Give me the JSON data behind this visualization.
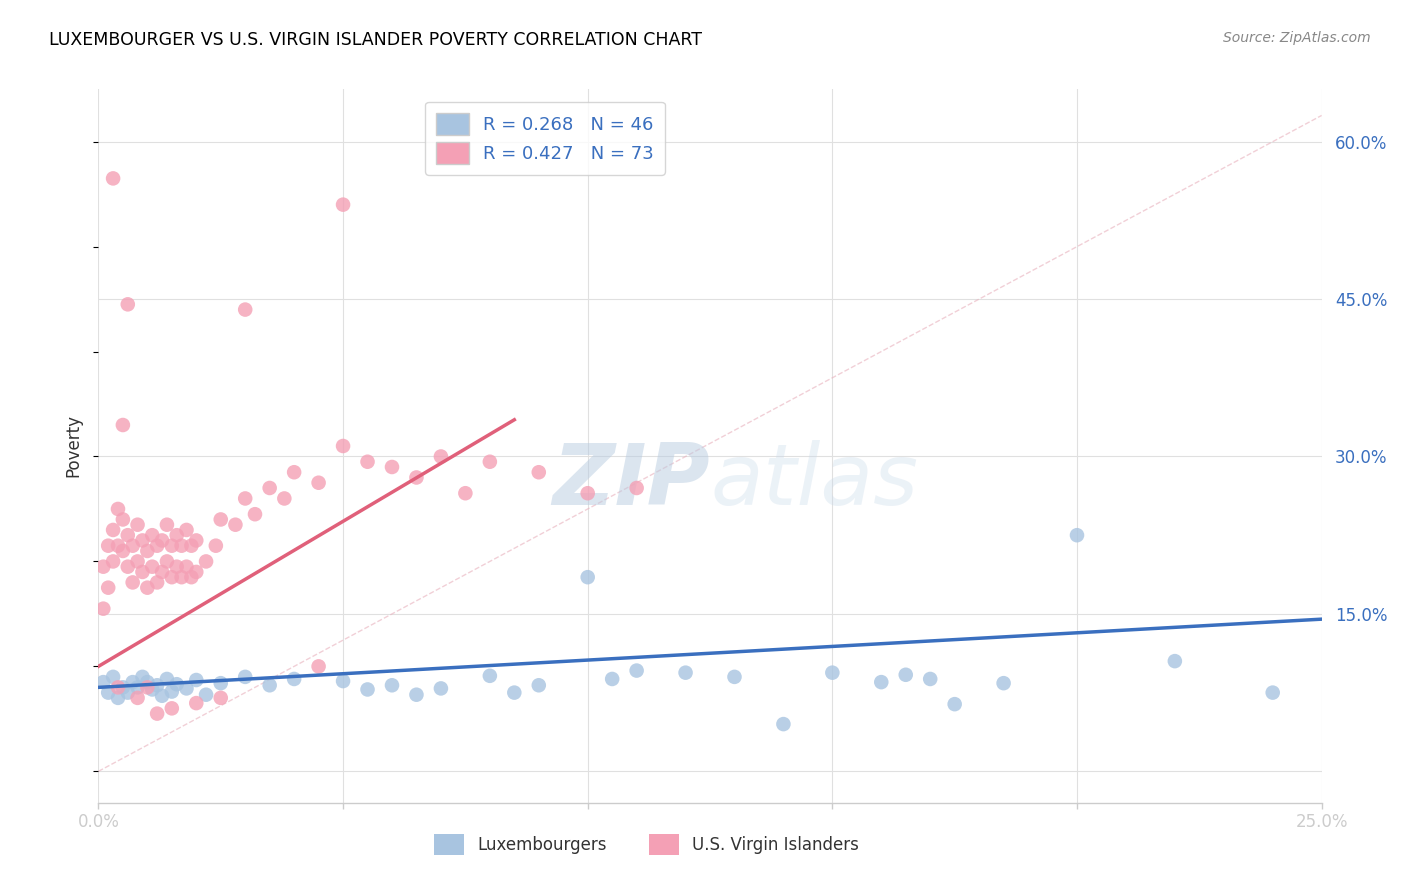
{
  "title": "LUXEMBOURGER VS U.S. VIRGIN ISLANDER POVERTY CORRELATION CHART",
  "source": "Source: ZipAtlas.com",
  "ylabel": "Poverty",
  "watermark_zip": "ZIP",
  "watermark_atlas": "atlas",
  "xlim": [
    0.0,
    0.25
  ],
  "ylim": [
    -0.03,
    0.65
  ],
  "xticks": [
    0.0,
    0.05,
    0.1,
    0.15,
    0.2,
    0.25
  ],
  "yticks_right": [
    0.0,
    0.15,
    0.3,
    0.45,
    0.6
  ],
  "ytick_labels_right": [
    "",
    "15.0%",
    "30.0%",
    "45.0%",
    "60.0%"
  ],
  "xtick_labels": [
    "0.0%",
    "",
    "",
    "",
    "",
    "25.0%"
  ],
  "blue_R": 0.268,
  "blue_N": 46,
  "pink_R": 0.427,
  "pink_N": 73,
  "blue_color": "#a8c4e0",
  "pink_color": "#f4a0b5",
  "blue_line_color": "#3a6fbf",
  "pink_line_color": "#e0607a",
  "dashed_line_color": "#e8b0bc",
  "grid_color": "#e0e0e0",
  "blue_scatter_x": [
    0.001,
    0.002,
    0.003,
    0.004,
    0.005,
    0.006,
    0.007,
    0.008,
    0.009,
    0.01,
    0.011,
    0.012,
    0.013,
    0.014,
    0.015,
    0.016,
    0.018,
    0.02,
    0.022,
    0.025,
    0.03,
    0.035,
    0.04,
    0.05,
    0.055,
    0.06,
    0.065,
    0.07,
    0.08,
    0.085,
    0.09,
    0.1,
    0.105,
    0.11,
    0.12,
    0.13,
    0.14,
    0.15,
    0.16,
    0.165,
    0.17,
    0.175,
    0.185,
    0.2,
    0.22,
    0.24
  ],
  "blue_scatter_y": [
    0.085,
    0.075,
    0.09,
    0.07,
    0.08,
    0.075,
    0.085,
    0.08,
    0.09,
    0.085,
    0.078,
    0.082,
    0.072,
    0.088,
    0.076,
    0.083,
    0.079,
    0.087,
    0.073,
    0.084,
    0.09,
    0.082,
    0.088,
    0.086,
    0.078,
    0.082,
    0.073,
    0.079,
    0.091,
    0.075,
    0.082,
    0.185,
    0.088,
    0.096,
    0.094,
    0.09,
    0.045,
    0.094,
    0.085,
    0.092,
    0.088,
    0.064,
    0.084,
    0.225,
    0.105,
    0.075
  ],
  "pink_scatter_x": [
    0.001,
    0.001,
    0.002,
    0.002,
    0.003,
    0.003,
    0.004,
    0.004,
    0.005,
    0.005,
    0.006,
    0.006,
    0.007,
    0.007,
    0.008,
    0.008,
    0.009,
    0.009,
    0.01,
    0.01,
    0.011,
    0.011,
    0.012,
    0.012,
    0.013,
    0.013,
    0.014,
    0.014,
    0.015,
    0.015,
    0.016,
    0.016,
    0.017,
    0.017,
    0.018,
    0.018,
    0.019,
    0.019,
    0.02,
    0.02,
    0.022,
    0.024,
    0.025,
    0.028,
    0.03,
    0.032,
    0.035,
    0.038,
    0.04,
    0.045,
    0.05,
    0.055,
    0.06,
    0.065,
    0.07,
    0.075,
    0.08,
    0.09,
    0.1,
    0.11,
    0.03,
    0.05,
    0.005,
    0.045,
    0.02,
    0.01,
    0.008,
    0.012,
    0.015,
    0.025,
    0.003,
    0.006,
    0.004
  ],
  "pink_scatter_y": [
    0.155,
    0.195,
    0.175,
    0.215,
    0.2,
    0.23,
    0.215,
    0.25,
    0.21,
    0.24,
    0.195,
    0.225,
    0.18,
    0.215,
    0.2,
    0.235,
    0.19,
    0.22,
    0.175,
    0.21,
    0.195,
    0.225,
    0.18,
    0.215,
    0.19,
    0.22,
    0.2,
    0.235,
    0.185,
    0.215,
    0.195,
    0.225,
    0.185,
    0.215,
    0.195,
    0.23,
    0.185,
    0.215,
    0.19,
    0.22,
    0.2,
    0.215,
    0.24,
    0.235,
    0.26,
    0.245,
    0.27,
    0.26,
    0.285,
    0.275,
    0.31,
    0.295,
    0.29,
    0.28,
    0.3,
    0.265,
    0.295,
    0.285,
    0.265,
    0.27,
    0.44,
    0.54,
    0.33,
    0.1,
    0.065,
    0.08,
    0.07,
    0.055,
    0.06,
    0.07,
    0.565,
    0.445,
    0.08
  ],
  "blue_line_x": [
    0.0,
    0.25
  ],
  "blue_line_y": [
    0.08,
    0.145
  ],
  "pink_line_x": [
    0.0,
    0.085
  ],
  "pink_line_y": [
    0.1,
    0.335
  ],
  "dashed_line_x": [
    0.0,
    0.25
  ],
  "dashed_line_y": [
    0.0,
    0.625
  ]
}
